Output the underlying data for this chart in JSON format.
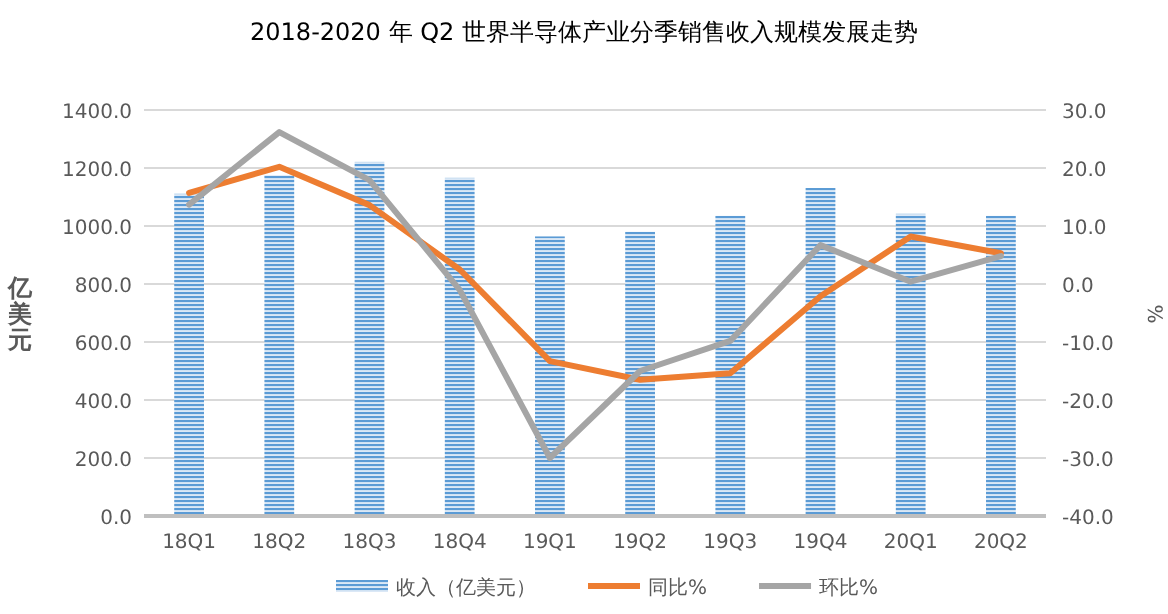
{
  "chart_data": {
    "type": "bar",
    "title": "2018-2020 年 Q2 世界半导体产业分季销售收入规模发展走势",
    "categories": [
      "18Q1",
      "18Q2",
      "18Q3",
      "18Q4",
      "19Q1",
      "19Q2",
      "19Q3",
      "19Q4",
      "20Q1",
      "20Q2"
    ],
    "series": [
      {
        "name": "收入（亿美元）",
        "color": "#5b9bd5",
        "values": [
          1111,
          1175,
          1221,
          1166,
          964,
          980,
          1035,
          1131,
          1042,
          1035
        ]
      },
      {
        "name": "同比%",
        "type": "line",
        "axis": "y2",
        "color": "#ed7d31",
        "values": [
          15.7,
          20.2,
          13.6,
          2.5,
          -13.3,
          -16.5,
          -15.4,
          -2.1,
          8.2,
          5.3
        ]
      },
      {
        "name": "环比%",
        "type": "line",
        "axis": "y2",
        "color": "#a5a5a5",
        "values": [
          13.7,
          26.2,
          17.9,
          -1.0,
          -30.0,
          -15.0,
          -9.8,
          6.7,
          0.4,
          4.8
        ]
      }
    ],
    "ylabel": "亿美元",
    "y2label": "%",
    "ylim": [
      0,
      1400
    ],
    "yticks": [
      {
        "value": 0,
        "label": "0.0"
      },
      {
        "value": 200,
        "label": "200.0"
      },
      {
        "value": 400,
        "label": "400.0"
      },
      {
        "value": 600,
        "label": "600.0"
      },
      {
        "value": 800,
        "label": "800.0"
      },
      {
        "value": 1000,
        "label": "1000.0"
      },
      {
        "value": 1200,
        "label": "1200.0"
      },
      {
        "value": 1400,
        "label": "1400.0"
      }
    ],
    "y2lim": [
      -40,
      30
    ],
    "y2ticks": [
      {
        "value": -40,
        "label": "-40.0"
      },
      {
        "value": -30,
        "label": "-30.0"
      },
      {
        "value": -20,
        "label": "-20.0"
      },
      {
        "value": -10,
        "label": "-10.0"
      },
      {
        "value": 0,
        "label": "0.0"
      },
      {
        "value": 10,
        "label": "10.0"
      },
      {
        "value": 20,
        "label": "20.0"
      },
      {
        "value": 30,
        "label": "30.0"
      }
    ],
    "grid": "y",
    "legend": "bottom",
    "marker": "none",
    "line_style": "solid"
  }
}
